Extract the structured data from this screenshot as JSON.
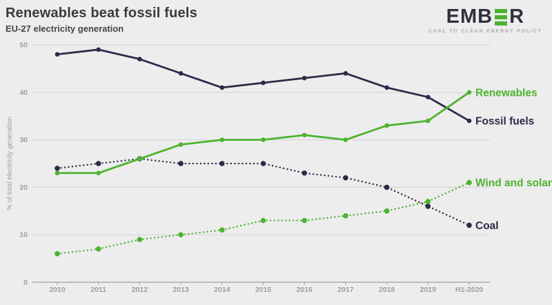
{
  "header": {
    "title": "Renewables beat fossil fuels",
    "subtitle": "EU-27 electricity generation"
  },
  "logo": {
    "text_left": "EMB",
    "text_right": "R",
    "tagline": "COAL TO CLEAN ENERGY POLICY"
  },
  "colors": {
    "background": "#ededed",
    "grid": "#d6d6d6",
    "axis": "#a0a0a0",
    "tick_text": "#9e9e9e",
    "navy": "#2b2b49",
    "green": "#4db32f"
  },
  "chart_data": {
    "type": "line",
    "title": "Renewables beat fossil fuels",
    "subtitle": "EU-27 electricity generation",
    "categories": [
      "2010",
      "2011",
      "2012",
      "2013",
      "2014",
      "2015",
      "2016",
      "2017",
      "2018",
      "2019",
      "H1-2020"
    ],
    "series": [
      {
        "name": "Fossil fuels",
        "values": [
          48,
          49,
          47,
          44,
          41,
          42,
          43,
          44,
          41,
          39,
          34
        ],
        "color": "#2b2b49",
        "style": "solid"
      },
      {
        "name": "Renewables",
        "values": [
          23,
          23,
          26,
          29,
          30,
          30,
          31,
          30,
          33,
          34,
          40
        ],
        "color": "#4db32f",
        "style": "solid"
      },
      {
        "name": "Coal",
        "values": [
          24,
          25,
          26,
          25,
          25,
          25,
          23,
          22,
          20,
          16,
          12
        ],
        "color": "#2b2b49",
        "style": "dotted"
      },
      {
        "name": "Wind and solar",
        "values": [
          6,
          7,
          9,
          10,
          11,
          13,
          13,
          14,
          15,
          17,
          21
        ],
        "color": "#4db32f",
        "style": "dotted"
      }
    ],
    "xlabel": "",
    "ylabel": "% of total electricity generation",
    "ylim": [
      0,
      50
    ],
    "yticks": [
      0,
      10,
      20,
      30,
      40,
      50
    ],
    "grid": true,
    "legend_position": "labels-at-line-ends"
  }
}
